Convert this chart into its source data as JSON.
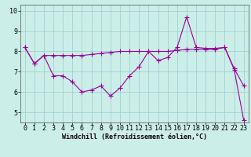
{
  "title": "",
  "xlabel": "Windchill (Refroidissement éolien,°C)",
  "background_color": "#cceee8",
  "line_color": "#990099",
  "grid_color": "#99cccc",
  "xlim": [
    -0.5,
    23.5
  ],
  "ylim": [
    4.5,
    10.3
  ],
  "xticks": [
    0,
    1,
    2,
    3,
    4,
    5,
    6,
    7,
    8,
    9,
    10,
    11,
    12,
    13,
    14,
    15,
    16,
    17,
    18,
    19,
    20,
    21,
    22,
    23
  ],
  "yticks": [
    5,
    6,
    7,
    8,
    9,
    10
  ],
  "series1_x": [
    0,
    1,
    2,
    3,
    4,
    5,
    6,
    7,
    8,
    9,
    10,
    11,
    12,
    13,
    14,
    15,
    16,
    17,
    18,
    19,
    20,
    21,
    22,
    23
  ],
  "series1_y": [
    8.2,
    7.4,
    7.8,
    6.8,
    6.8,
    6.5,
    6.0,
    6.1,
    6.3,
    5.8,
    6.2,
    6.8,
    7.25,
    8.0,
    7.55,
    7.7,
    8.2,
    9.7,
    8.2,
    8.15,
    8.15,
    8.2,
    7.1,
    4.6
  ],
  "series2_x": [
    0,
    1,
    2,
    3,
    4,
    5,
    6,
    7,
    8,
    9,
    10,
    11,
    12,
    13,
    14,
    15,
    16,
    17,
    18,
    19,
    20,
    21,
    22,
    23
  ],
  "series2_y": [
    8.2,
    7.4,
    7.8,
    7.8,
    7.8,
    7.8,
    7.8,
    7.85,
    7.9,
    7.95,
    8.0,
    8.0,
    8.0,
    8.0,
    8.0,
    8.0,
    8.05,
    8.1,
    8.1,
    8.1,
    8.1,
    8.2,
    7.15,
    6.3
  ],
  "xlabel_fontsize": 6,
  "tick_fontsize": 6,
  "marker": "+",
  "markersize": 4,
  "linewidth": 0.8,
  "top_label": "10",
  "border_color": "#556655"
}
